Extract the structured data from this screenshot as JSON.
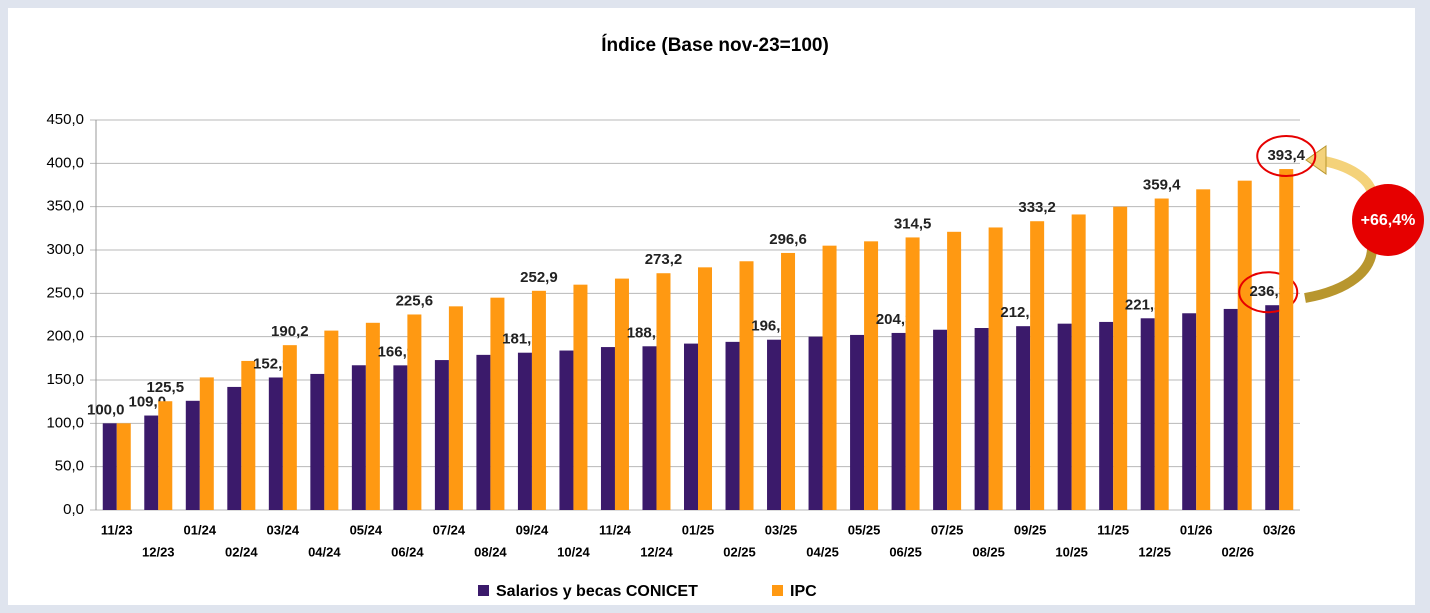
{
  "chart_data": {
    "type": "bar",
    "title": "Índice (Base nov-23=100)",
    "categories": [
      "11/23",
      "12/23",
      "01/24",
      "02/24",
      "03/24",
      "04/24",
      "05/24",
      "06/24",
      "07/24",
      "08/24",
      "09/24",
      "10/24",
      "11/24",
      "12/24",
      "01/25",
      "02/25",
      "03/25",
      "04/25",
      "05/25",
      "06/25",
      "07/25",
      "08/25",
      "09/25",
      "10/25",
      "11/25",
      "12/25",
      "01/26",
      "02/26",
      "03/26"
    ],
    "series": [
      {
        "name": "Salarios y becas CONICET",
        "color": "#3b1a6b",
        "values": [
          100,
          109,
          126,
          142,
          152.9,
          157,
          167,
          166.9,
          173,
          179,
          181.5,
          184,
          188,
          188.9,
          192,
          194,
          196.5,
          200,
          202,
          204.3,
          208,
          210,
          212.1,
          215,
          217,
          221.2,
          227,
          232,
          236.3
        ],
        "value_labels": [
          "100,0",
          "109,0",
          null,
          null,
          "152,9",
          null,
          null,
          "166,9",
          null,
          null,
          "181,5",
          null,
          null,
          "188,9",
          null,
          null,
          "196,5",
          null,
          null,
          "204,3",
          null,
          null,
          "212,1",
          null,
          null,
          "221,2",
          null,
          null,
          "236,3"
        ]
      },
      {
        "name": "IPC",
        "color": "#ff9912",
        "values": [
          100,
          125.5,
          153,
          172,
          190.2,
          207,
          216,
          225.6,
          235,
          245,
          252.9,
          260,
          267,
          273.2,
          280,
          287,
          296.6,
          305,
          310,
          314.5,
          321,
          326,
          333.2,
          341,
          350,
          359.4,
          370,
          380,
          393.4
        ],
        "value_labels": [
          null,
          "125,5",
          null,
          null,
          "190,2",
          null,
          null,
          "225,6",
          null,
          null,
          "252,9",
          null,
          null,
          "273,2",
          null,
          null,
          "296,6",
          null,
          null,
          "314,5",
          null,
          null,
          "333,2",
          null,
          null,
          "359,4",
          null,
          null,
          "393,4"
        ]
      }
    ],
    "ylim": [
      0,
      450
    ],
    "yticks": [
      {
        "value": 0,
        "label": "0,0"
      },
      {
        "value": 50,
        "label": "50,0"
      },
      {
        "value": 100,
        "label": "100,0"
      },
      {
        "value": 150,
        "label": "150,0"
      },
      {
        "value": 200,
        "label": "200,0"
      },
      {
        "value": 250,
        "label": "250,0"
      },
      {
        "value": 300,
        "label": "300,0"
      },
      {
        "value": 350,
        "label": "350,0"
      },
      {
        "value": 400,
        "label": "400,0"
      },
      {
        "value": 450,
        "label": "450,0"
      }
    ],
    "grid": true,
    "legend": "bottom",
    "annotation": "+66,4%"
  }
}
